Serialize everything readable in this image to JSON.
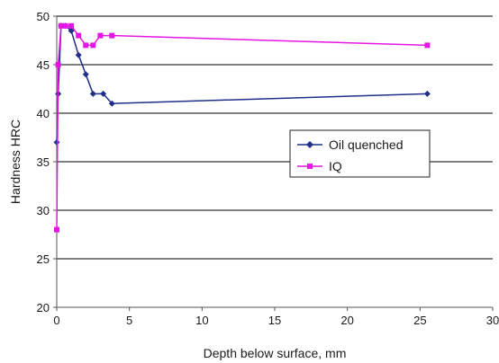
{
  "chart_data": {
    "type": "line",
    "title": "",
    "xlabel": "Depth below surface, mm",
    "ylabel": "Hardness HRC",
    "xlim": [
      0,
      30
    ],
    "ylim": [
      20,
      50
    ],
    "x_ticks": [
      "0",
      "5",
      "10",
      "15",
      "20",
      "25",
      "30"
    ],
    "y_ticks": [
      "20",
      "25",
      "30",
      "35",
      "40",
      "45",
      "50"
    ],
    "grid": "horizontal",
    "legend_position": "center-right",
    "series": [
      {
        "name": "Oil quenched",
        "color": "#1f2f8a",
        "marker": "diamond",
        "points": [
          [
            0,
            37
          ],
          [
            0.1,
            42
          ],
          [
            0.3,
            49
          ],
          [
            0.6,
            49
          ],
          [
            1.0,
            48.5
          ],
          [
            1.5,
            46
          ],
          [
            2.0,
            44
          ],
          [
            2.5,
            42
          ],
          [
            3.2,
            42
          ],
          [
            3.8,
            41
          ],
          [
            25.5,
            42
          ]
        ]
      },
      {
        "name": "IQ",
        "color": "#e316e3",
        "marker": "square",
        "points": [
          [
            0,
            28
          ],
          [
            0.1,
            45
          ],
          [
            0.3,
            49
          ],
          [
            0.6,
            49
          ],
          [
            1.0,
            49
          ],
          [
            1.5,
            48
          ],
          [
            2.0,
            47
          ],
          [
            2.5,
            47
          ],
          [
            3.0,
            48
          ],
          [
            3.8,
            48
          ],
          [
            25.5,
            47
          ]
        ]
      }
    ]
  }
}
